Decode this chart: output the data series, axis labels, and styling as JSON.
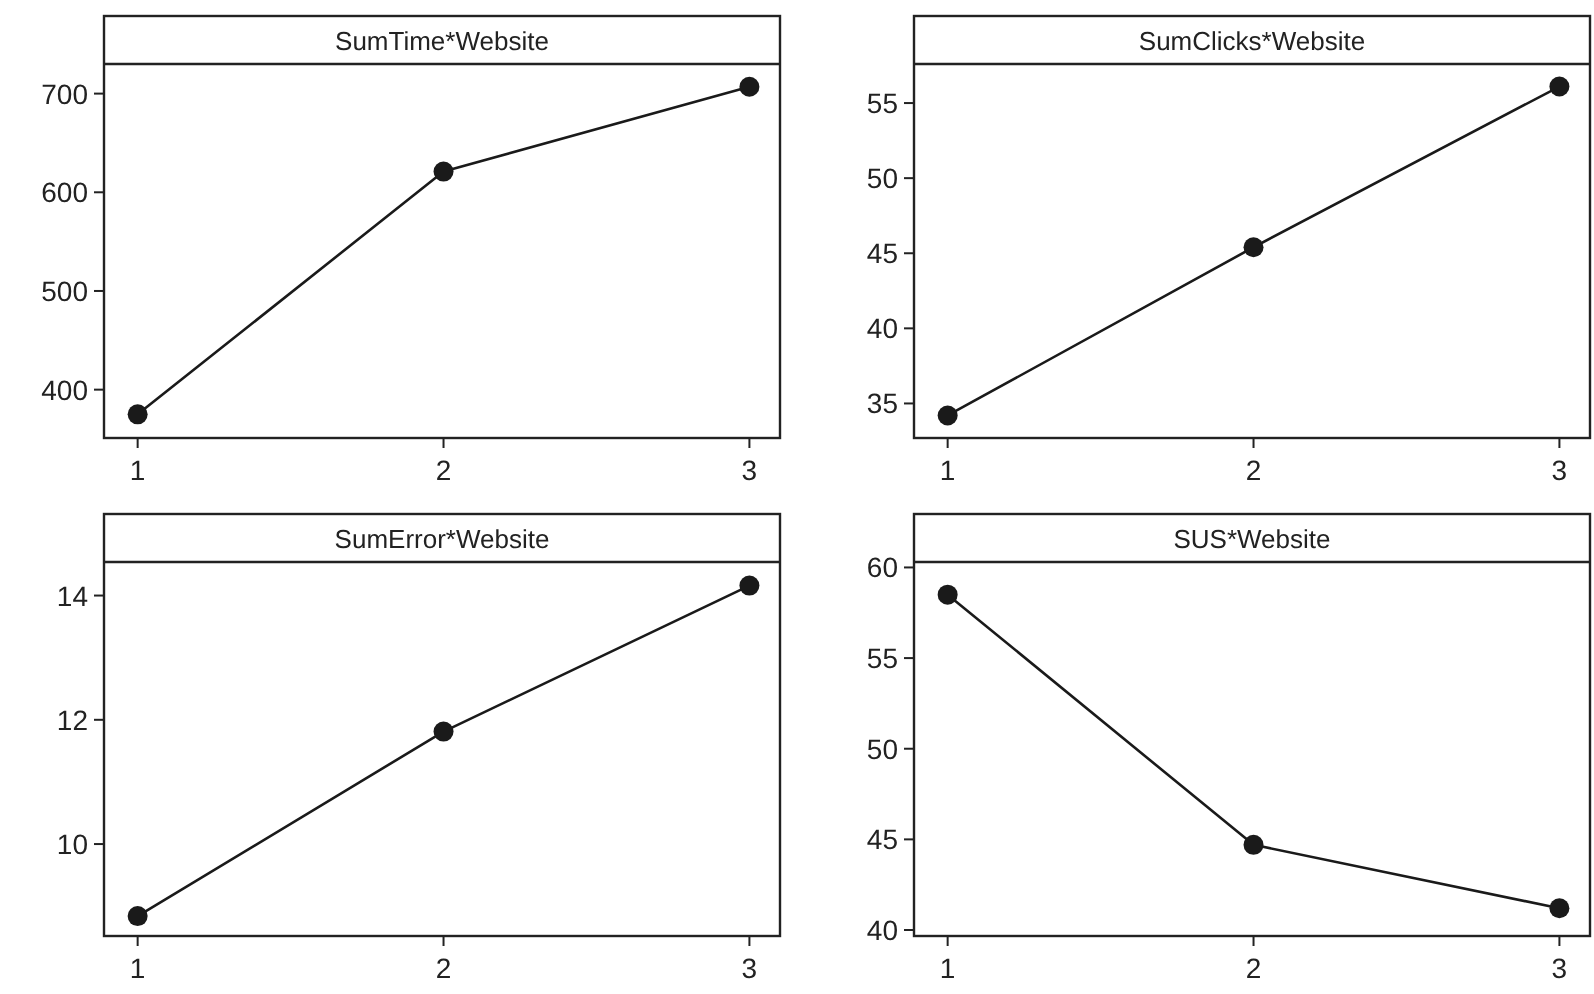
{
  "chart_data": [
    {
      "type": "line",
      "title": "SumTime*Website",
      "x": [
        1,
        2,
        3
      ],
      "values": [
        375,
        621,
        707
      ],
      "color": "#1a1a1a",
      "marker": "circle",
      "xlim": [
        0.89,
        3.1
      ],
      "xticks": [
        1,
        2,
        3
      ],
      "ylim": [
        351,
        730
      ],
      "yticks": [
        400,
        500,
        600,
        700
      ],
      "grid": false
    },
    {
      "type": "line",
      "title": "SumClicks*Website",
      "x": [
        1,
        2,
        3
      ],
      "values": [
        34.2,
        45.4,
        56.1
      ],
      "color": "#1a1a1a",
      "marker": "circle",
      "xlim": [
        0.89,
        3.1
      ],
      "xticks": [
        1,
        2,
        3
      ],
      "ylim": [
        32.7,
        57.6
      ],
      "yticks": [
        35,
        40,
        45,
        50,
        55
      ],
      "grid": false
    },
    {
      "type": "line",
      "title": "SumError*Website",
      "x": [
        1,
        2,
        3
      ],
      "values": [
        8.84,
        11.81,
        14.16
      ],
      "color": "#1a1a1a",
      "marker": "circle",
      "xlim": [
        0.89,
        3.1
      ],
      "xticks": [
        1,
        2,
        3
      ],
      "ylim": [
        8.52,
        14.54
      ],
      "yticks": [
        10,
        12,
        14
      ],
      "grid": false
    },
    {
      "type": "line",
      "title": "SUS*Website",
      "x": [
        1,
        2,
        3
      ],
      "values": [
        58.5,
        44.7,
        41.2
      ],
      "color": "#1a1a1a",
      "marker": "circle",
      "xlim": [
        0.89,
        3.1
      ],
      "xticks": [
        1,
        2,
        3
      ],
      "ylim": [
        39.67,
        60.3
      ],
      "yticks": [
        40,
        45,
        50,
        55,
        60
      ],
      "grid": false
    }
  ]
}
